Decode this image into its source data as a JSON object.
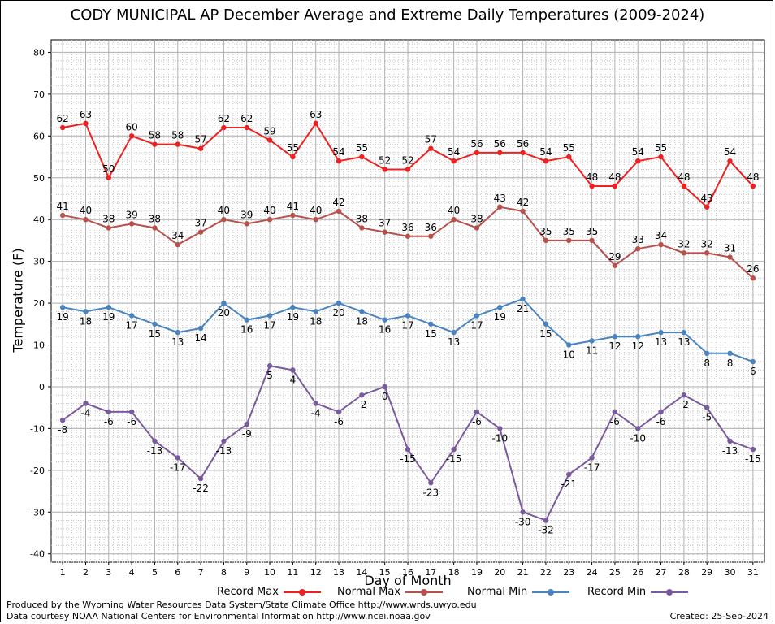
{
  "chart_data": {
    "type": "line",
    "title": "CODY MUNICIPAL AP December Average and Extreme Daily Temperatures (2009-2024)",
    "xlabel": "Day of Month",
    "ylabel": "Temperature (F)",
    "x": [
      1,
      2,
      3,
      4,
      5,
      6,
      7,
      8,
      9,
      10,
      11,
      12,
      13,
      14,
      15,
      16,
      17,
      18,
      19,
      20,
      21,
      22,
      23,
      24,
      25,
      26,
      27,
      28,
      29,
      30,
      31
    ],
    "xlim": [
      0.5,
      31.5
    ],
    "ylim": [
      -42,
      83
    ],
    "yticks": [
      -40,
      -30,
      -20,
      -10,
      0,
      10,
      20,
      30,
      40,
      50,
      60,
      70,
      80
    ],
    "grid": true,
    "legend_position": "bottom",
    "series": [
      {
        "name": "Record Max",
        "color": "#ee2020",
        "values": [
          62,
          63,
          50,
          60,
          58,
          58,
          57,
          62,
          62,
          59,
          55,
          63,
          54,
          55,
          52,
          52,
          57,
          54,
          56,
          56,
          56,
          54,
          55,
          48,
          48,
          54,
          55,
          48,
          43,
          54,
          48
        ],
        "label_side": "above"
      },
      {
        "name": "Normal Max",
        "color": "#b8504c",
        "values": [
          41,
          40,
          38,
          39,
          38,
          34,
          37,
          40,
          39,
          40,
          41,
          40,
          42,
          38,
          37,
          36,
          36,
          40,
          38,
          43,
          42,
          35,
          35,
          35,
          29,
          33,
          34,
          32,
          32,
          31,
          26
        ],
        "label_side": "above"
      },
      {
        "name": "Normal Min",
        "color": "#4a84c0",
        "values": [
          19,
          18,
          19,
          17,
          15,
          13,
          14,
          20,
          16,
          17,
          19,
          18,
          20,
          18,
          16,
          17,
          15,
          13,
          17,
          19,
          21,
          15,
          10,
          11,
          12,
          12,
          13,
          13,
          8,
          8,
          6
        ],
        "label_side": "below"
      },
      {
        "name": "Record Min",
        "color": "#7a5a9c",
        "values": [
          -8,
          -4,
          -6,
          -6,
          -13,
          -17,
          -22,
          -13,
          -9,
          5,
          4,
          -4,
          -6,
          -2,
          0,
          -15,
          -23,
          -15,
          -6,
          -10,
          -30,
          -32,
          -21,
          -17,
          -6,
          -10,
          -6,
          -2,
          -5,
          -13,
          -15
        ],
        "label_side": "below"
      }
    ]
  },
  "footer": {
    "produced": "Produced by the Wyoming Water Resources Data System/State Climate Office http://www.wrds.uwyo.edu",
    "courtesy": "Data courtesy NOAA National Centers for Environmental Information http://www.ncei.noaa.gov",
    "created": "Created: 25-Sep-2024"
  }
}
